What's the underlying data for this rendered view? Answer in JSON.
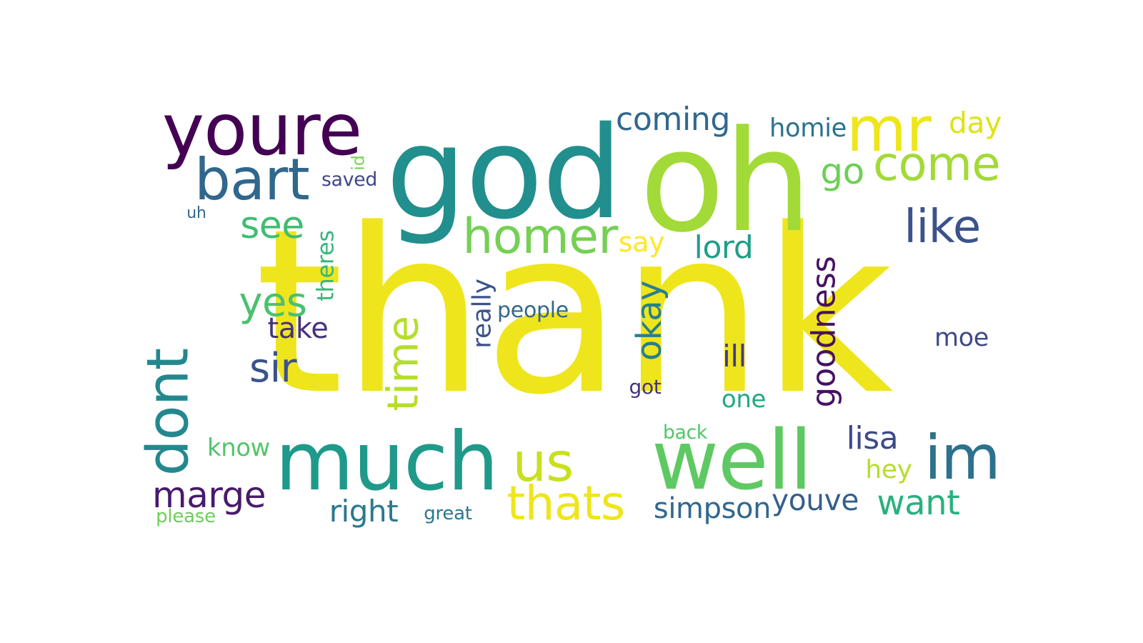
{
  "word_cloud": {
    "words": [
      {
        "text": "thank",
        "color": "#efe51c"
      },
      {
        "text": "god",
        "color": "#218f8d"
      },
      {
        "text": "oh",
        "color": "#a2da37"
      },
      {
        "text": "youre",
        "color": "#440154"
      },
      {
        "text": "mr",
        "color": "#efe51c"
      },
      {
        "text": "bart",
        "color": "#30678d"
      },
      {
        "text": "much",
        "color": "#1f998a"
      },
      {
        "text": "well",
        "color": "#5ec962"
      },
      {
        "text": "im",
        "color": "#2c718e"
      },
      {
        "text": "dont",
        "color": "#23888e"
      },
      {
        "text": "homer",
        "color": "#75d054"
      },
      {
        "text": "come",
        "color": "#a2da37"
      },
      {
        "text": "like",
        "color": "#3b528b"
      },
      {
        "text": "us",
        "color": "#c8e020"
      },
      {
        "text": "thats",
        "color": "#efe51c"
      },
      {
        "text": "time",
        "color": "#b5de2b"
      },
      {
        "text": "coming",
        "color": "#31688e"
      },
      {
        "text": "goodness",
        "color": "#471063"
      },
      {
        "text": "see",
        "color": "#40bd72"
      },
      {
        "text": "yes",
        "color": "#4ac16d"
      },
      {
        "text": "sir",
        "color": "#3b528b"
      },
      {
        "text": "okay",
        "color": "#277f8e"
      },
      {
        "text": "marge",
        "color": "#481a6c"
      },
      {
        "text": "want",
        "color": "#2ab07f"
      },
      {
        "text": "lisa",
        "color": "#3e4989"
      },
      {
        "text": "go",
        "color": "#6ece58"
      },
      {
        "text": "really",
        "color": "#3b528b"
      },
      {
        "text": "youve",
        "color": "#355f8d"
      },
      {
        "text": "right",
        "color": "#2a788e"
      },
      {
        "text": "simpson",
        "color": "#31688e"
      },
      {
        "text": "theres",
        "color": "#35b779"
      },
      {
        "text": "take",
        "color": "#46327e"
      },
      {
        "text": "lord",
        "color": "#1f9e89"
      },
      {
        "text": "ill",
        "color": "#443a83"
      },
      {
        "text": "day",
        "color": "#dde318"
      },
      {
        "text": "homie",
        "color": "#2c728e"
      },
      {
        "text": "say",
        "color": "#fde725"
      },
      {
        "text": "moe",
        "color": "#3e4989"
      },
      {
        "text": "hey",
        "color": "#b5de2b"
      },
      {
        "text": "know",
        "color": "#52c569"
      },
      {
        "text": "one",
        "color": "#22a884"
      },
      {
        "text": "people",
        "color": "#31688e"
      },
      {
        "text": "saved",
        "color": "#404688"
      },
      {
        "text": "got",
        "color": "#46327e"
      },
      {
        "text": "back",
        "color": "#52c569"
      },
      {
        "text": "great",
        "color": "#2a788e"
      },
      {
        "text": "please",
        "color": "#6ece58"
      },
      {
        "text": "id",
        "color": "#7ad151"
      },
      {
        "text": "uh",
        "color": "#31688e"
      }
    ]
  }
}
